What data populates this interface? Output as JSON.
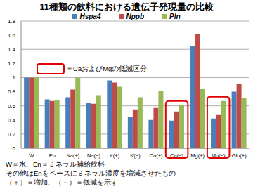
{
  "chart_data": {
    "type": "bar",
    "title": "11種類の飲料における遺伝子発現量の比較",
    "categories": [
      "W",
      "En",
      "Na(+)",
      "Na(−)",
      "K(+)",
      "K(−)",
      "Ca(+)",
      "Ca(−)",
      "Mg(+)",
      "Mg(−)",
      "Glu(+)"
    ],
    "series": [
      {
        "name": "Hspa4",
        "color": "#4a7ebb",
        "values": [
          1,
          0.69,
          0.72,
          0.64,
          0.96,
          0.44,
          0.4,
          0.39,
          1.45,
          0.42,
          0.8
        ]
      },
      {
        "name": "Nppb",
        "color": "#be4b48",
        "values": [
          1,
          0.67,
          0.83,
          0.63,
          0.93,
          0.55,
          0.57,
          0.52,
          1.61,
          0.48,
          0.91
        ]
      },
      {
        "name": "Pln",
        "color": "#98b954",
        "values": [
          1,
          0.68,
          1.0,
          0.75,
          0.87,
          0.72,
          0.81,
          0.61,
          0.84,
          0.67,
          0.71
        ]
      }
    ],
    "ylim": [
      0,
      1.8
    ],
    "yticks": [
      0,
      0.2,
      0.4,
      0.6,
      0.8,
      1,
      1.2,
      1.4,
      1.6,
      1.8
    ],
    "grid": true,
    "legend": "top",
    "annotations": [
      {
        "text": "＝CaおよびMgの低減区分",
        "categories": [
          "Ca(−)",
          "Mg(−)"
        ]
      },
      {
        "text": "W＝水、En＝ミネラル補給飲料"
      },
      {
        "text": "その他はEnをベースにミネラル濃度を増減させたもの"
      },
      {
        "text": "（＋）＝増加、（－）＝低減を示す"
      }
    ]
  }
}
